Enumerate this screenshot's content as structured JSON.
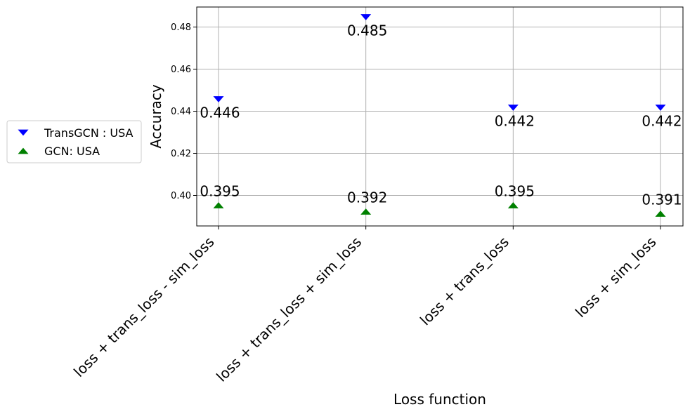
{
  "chart_data": {
    "type": "scatter",
    "categories": [
      "loss + trans_loss - sim_loss",
      "loss + trans_loss + sim_loss",
      "loss + trans_loss",
      "loss + sim_loss"
    ],
    "series": [
      {
        "name": "TransGCN : USA",
        "values": [
          0.446,
          0.485,
          0.442,
          0.442
        ],
        "labels": [
          "0.446",
          "0.485",
          "0.442",
          "0.442"
        ],
        "marker": "triangle-down",
        "color": "#0000ff"
      },
      {
        "name": "GCN: USA",
        "values": [
          0.395,
          0.392,
          0.395,
          0.391
        ],
        "labels": [
          "0.395",
          "0.392",
          "0.395",
          "0.391"
        ],
        "marker": "triangle-up",
        "color": "#008000"
      }
    ],
    "xlabel": "Loss function",
    "ylabel": "Accuracy",
    "ylim": [
      0.3855,
      0.4895
    ],
    "yticks": [
      0.4,
      0.42,
      0.44,
      0.46,
      0.48
    ],
    "ytick_labels": [
      "0.40",
      "0.42",
      "0.44",
      "0.46",
      "0.48"
    ],
    "grid": true,
    "legend_position": "left, outside plot"
  }
}
